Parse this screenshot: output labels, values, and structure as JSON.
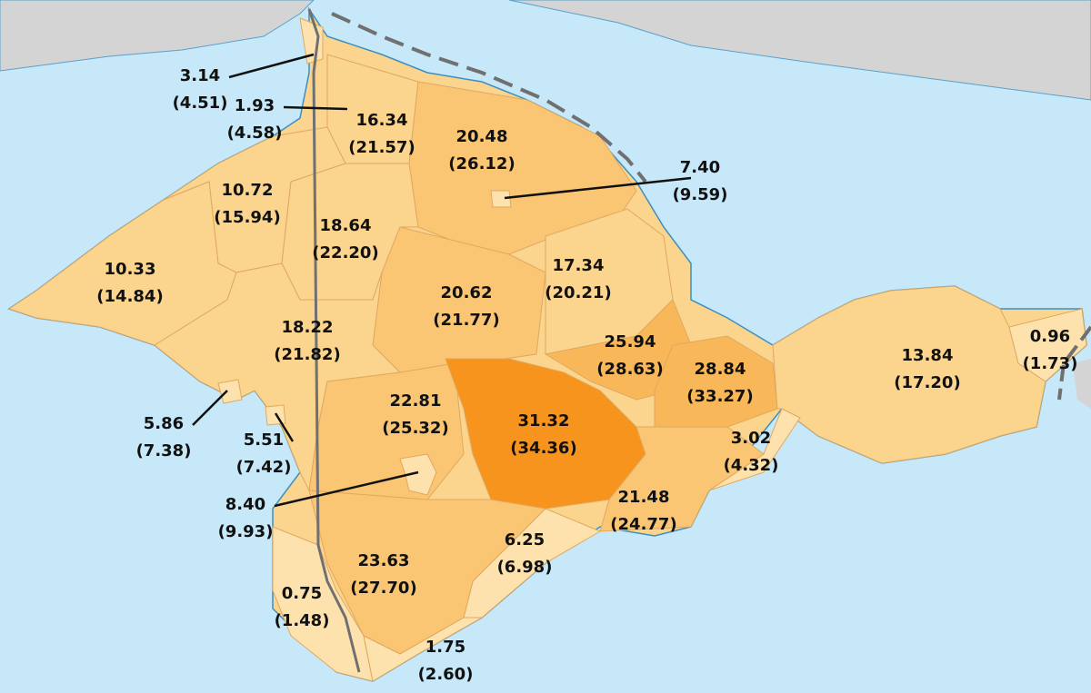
{
  "regions": [
    {
      "value": "3.14",
      "secondary": "(4.51)",
      "color": "#fde2ad"
    },
    {
      "value": "1.93",
      "secondary": "(4.58)",
      "color": "#fde2ad"
    },
    {
      "value": "16.34",
      "secondary": "(21.57)",
      "color": "#fbd48e"
    },
    {
      "value": "20.48",
      "secondary": "(26.12)",
      "color": "#fac673"
    },
    {
      "value": "7.40",
      "secondary": "(9.59)",
      "color": "#fde2ad"
    },
    {
      "value": "10.72",
      "secondary": "(15.94)",
      "color": "#fbd48e"
    },
    {
      "value": "18.64",
      "secondary": "(22.20)",
      "color": "#fbd48e"
    },
    {
      "value": "10.33",
      "secondary": "(14.84)",
      "color": "#fbd48e"
    },
    {
      "value": "17.34",
      "secondary": "(20.21)",
      "color": "#fbd48e"
    },
    {
      "value": "20.62",
      "secondary": "(21.77)",
      "color": "#fac673"
    },
    {
      "value": "18.22",
      "secondary": "(21.82)",
      "color": "#fbd48e"
    },
    {
      "value": "25.94",
      "secondary": "(28.63)",
      "color": "#f8b85a"
    },
    {
      "value": "28.84",
      "secondary": "(33.27)",
      "color": "#f8b85a"
    },
    {
      "value": "13.84",
      "secondary": "(17.20)",
      "color": "#fbd48e"
    },
    {
      "value": "0.96",
      "secondary": "(1.73)",
      "color": "#fde2ad"
    },
    {
      "value": "22.81",
      "secondary": "(25.32)",
      "color": "#fac673"
    },
    {
      "value": "31.32",
      "secondary": "(34.36)",
      "color": "#f7941d"
    },
    {
      "value": "5.86",
      "secondary": "(7.38)",
      "color": "#fde2ad"
    },
    {
      "value": "5.51",
      "secondary": "(7.42)",
      "color": "#fde2ad"
    },
    {
      "value": "3.02",
      "secondary": "(4.32)",
      "color": "#fde2ad"
    },
    {
      "value": "8.40",
      "secondary": "(9.93)",
      "color": "#fde2ad"
    },
    {
      "value": "21.48",
      "secondary": "(24.77)",
      "color": "#fac673"
    },
    {
      "value": "6.25",
      "secondary": "(6.98)",
      "color": "#fde2ad"
    },
    {
      "value": "23.63",
      "secondary": "(27.70)",
      "color": "#fac673"
    },
    {
      "value": "0.75",
      "secondary": "(1.48)",
      "color": "#fde2ad"
    },
    {
      "value": "1.75",
      "secondary": "(2.60)",
      "color": "#fde2ad"
    }
  ]
}
